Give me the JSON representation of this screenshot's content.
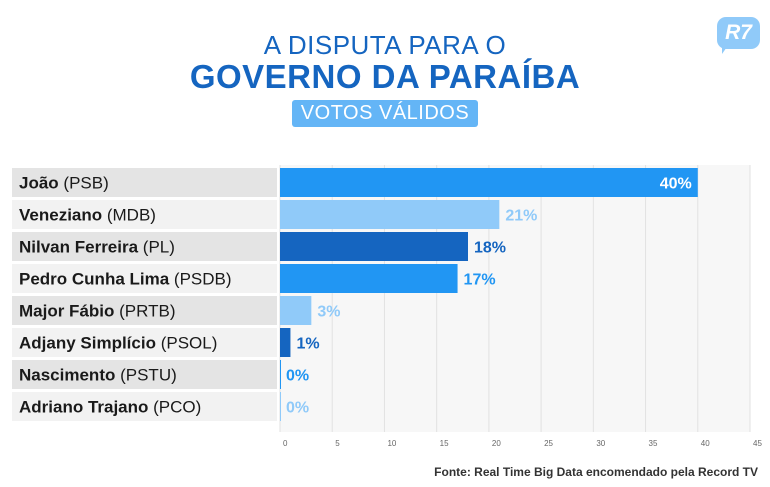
{
  "header": {
    "line1": "A DISPUTA PARA O",
    "line2": "GOVERNO DA PARAÍBA",
    "subtitle": "VOTOS VÁLIDOS",
    "logo": "R7"
  },
  "colors": {
    "dark_blue": "#1565c0",
    "mid_blue": "#2196f3",
    "light_blue": "#90caf9",
    "label_bg_dark": "#e4e4e4",
    "label_bg_light": "#f2f2f2"
  },
  "chart_data": {
    "type": "bar",
    "orientation": "horizontal",
    "categories": [
      {
        "name": "João",
        "party": "(PSB)"
      },
      {
        "name": "Veneziano",
        "party": "(MDB)"
      },
      {
        "name": "Nilvan Ferreira",
        "party": "(PL)"
      },
      {
        "name": "Pedro Cunha Lima",
        "party": "(PSDB)"
      },
      {
        "name": "Major Fábio",
        "party": "(PRTB)"
      },
      {
        "name": "Adjany Simplício",
        "party": "(PSOL)"
      },
      {
        "name": "Nascimento",
        "party": "(PSTU)"
      },
      {
        "name": "Adriano Trajano",
        "party": "(PCO)"
      }
    ],
    "values": [
      40,
      21,
      18,
      17,
      3,
      1,
      0,
      0
    ],
    "value_labels": [
      "40%",
      "21%",
      "18%",
      "17%",
      "3%",
      "1%",
      "0%",
      "0%"
    ],
    "bar_colors": [
      "#2196f3",
      "#90caf9",
      "#1565c0",
      "#2196f3",
      "#90caf9",
      "#1565c0",
      "#2196f3",
      "#90caf9"
    ],
    "x_ticks": [
      0,
      5,
      10,
      15,
      20,
      25,
      30,
      35,
      40,
      45
    ],
    "xlim": [
      0,
      45
    ],
    "grid": true
  },
  "footer": {
    "source": "Fonte: Real Time Big Data encomendado pela Record TV"
  }
}
